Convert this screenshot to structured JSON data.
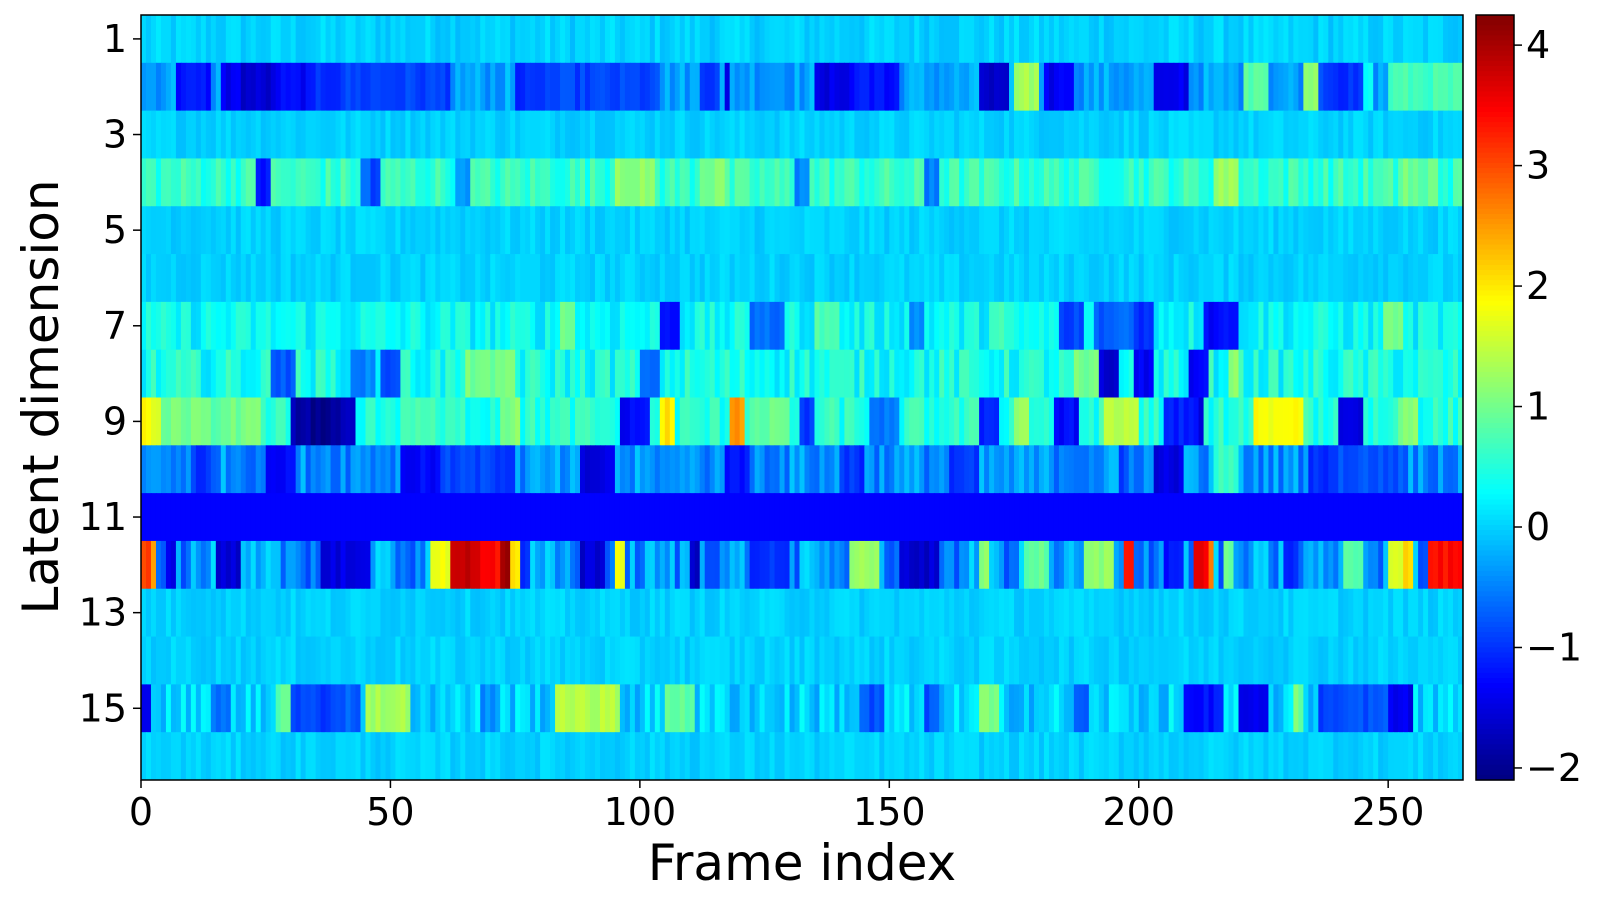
{
  "chart_data": {
    "type": "heatmap",
    "xlabel": "Frame index",
    "ylabel": "Latent dimension",
    "x_ticks": [
      0,
      50,
      100,
      150,
      200,
      250
    ],
    "y_ticks": [
      1,
      3,
      5,
      7,
      9,
      11,
      13,
      15
    ],
    "n_frames": 265,
    "n_dims": 16,
    "xlim": [
      0,
      265
    ],
    "ylim": [
      0.5,
      16.5
    ],
    "colormap": "jet",
    "color_range": [
      -2.1,
      4.25
    ],
    "colorbar_ticks": [
      4,
      3,
      2,
      1,
      0,
      -1,
      -2
    ],
    "colorbar_tick_labels": [
      "4",
      "3",
      "2",
      "1",
      "0",
      "−1",
      "−2"
    ],
    "rows": [
      {
        "dim": 1,
        "base": 0.0,
        "noise": 0.15,
        "segments": []
      },
      {
        "dim": 2,
        "base": -0.3,
        "noise": 0.25,
        "segments": [
          [
            7,
            14,
            -1.2
          ],
          [
            16,
            20,
            -1.4
          ],
          [
            20,
            27,
            -1.6
          ],
          [
            27,
            35,
            -1.3
          ],
          [
            35,
            40,
            -1.0
          ],
          [
            40,
            62,
            -0.9
          ],
          [
            75,
            80,
            -1.1
          ],
          [
            80,
            104,
            -0.9
          ],
          [
            112,
            116,
            -1.0
          ],
          [
            117,
            118,
            -1.6
          ],
          [
            135,
            142,
            -1.5
          ],
          [
            142,
            152,
            -1.2
          ],
          [
            168,
            174,
            -1.6
          ],
          [
            175,
            180,
            1.3
          ],
          [
            181,
            187,
            -1.4
          ],
          [
            203,
            210,
            -1.4
          ],
          [
            221,
            226,
            0.8
          ],
          [
            233,
            236,
            1.1
          ],
          [
            236,
            240,
            -0.9
          ],
          [
            240,
            245,
            -1.0
          ],
          [
            245,
            247,
            0.3
          ],
          [
            250,
            265,
            0.7
          ]
        ]
      },
      {
        "dim": 3,
        "base": 0.0,
        "noise": 0.12,
        "segments": []
      },
      {
        "dim": 4,
        "base": 0.6,
        "noise": 0.3,
        "segments": [
          [
            23,
            26,
            -1.2
          ],
          [
            44,
            46,
            -0.5
          ],
          [
            46,
            48,
            -1.0
          ],
          [
            63,
            66,
            -0.4
          ],
          [
            95,
            103,
            1.2
          ],
          [
            112,
            117,
            1.1
          ],
          [
            131,
            134,
            -0.5
          ],
          [
            157,
            160,
            -0.5
          ],
          [
            215,
            220,
            1.3
          ],
          [
            252,
            256,
            1.0
          ],
          [
            256,
            260,
            0.9
          ]
        ]
      },
      {
        "dim": 5,
        "base": 0.0,
        "noise": 0.12,
        "segments": []
      },
      {
        "dim": 6,
        "base": 0.0,
        "noise": 0.12,
        "segments": []
      },
      {
        "dim": 7,
        "base": 0.3,
        "noise": 0.3,
        "segments": [
          [
            84,
            87,
            0.9
          ],
          [
            104,
            108,
            -1.2
          ],
          [
            122,
            129,
            -0.6
          ],
          [
            135,
            140,
            0.8
          ],
          [
            154,
            157,
            -0.5
          ],
          [
            170,
            173,
            0.8
          ],
          [
            184,
            189,
            -0.9
          ],
          [
            191,
            199,
            -0.7
          ],
          [
            199,
            203,
            -1.0
          ],
          [
            213,
            220,
            -1.3
          ],
          [
            249,
            253,
            1.0
          ]
        ]
      },
      {
        "dim": 8,
        "base": 0.4,
        "noise": 0.35,
        "segments": [
          [
            26,
            31,
            -0.8
          ],
          [
            42,
            47,
            -0.5
          ],
          [
            48,
            52,
            -0.8
          ],
          [
            65,
            75,
            1.0
          ],
          [
            100,
            104,
            -0.6
          ],
          [
            187,
            192,
            1.0
          ],
          [
            192,
            196,
            -1.6
          ],
          [
            199,
            203,
            -1.4
          ],
          [
            210,
            214,
            -1.3
          ],
          [
            218,
            220,
            1.1
          ]
        ]
      },
      {
        "dim": 9,
        "base": 0.5,
        "noise": 0.3,
        "segments": [
          [
            0,
            2,
            2.0
          ],
          [
            2,
            4,
            1.6
          ],
          [
            4,
            12,
            1.0
          ],
          [
            12,
            18,
            0.9
          ],
          [
            18,
            24,
            1.0
          ],
          [
            30,
            34,
            -1.8
          ],
          [
            34,
            40,
            -2.0
          ],
          [
            40,
            43,
            -1.8
          ],
          [
            53,
            58,
            0.7
          ],
          [
            72,
            76,
            1.1
          ],
          [
            96,
            102,
            -1.3
          ],
          [
            104,
            107,
            2.0
          ],
          [
            118,
            121,
            2.5
          ],
          [
            122,
            130,
            0.9
          ],
          [
            132,
            135,
            -1.0
          ],
          [
            146,
            152,
            -0.6
          ],
          [
            168,
            172,
            -1.1
          ],
          [
            175,
            178,
            1.3
          ],
          [
            183,
            188,
            -1.3
          ],
          [
            193,
            200,
            1.4
          ],
          [
            205,
            212,
            -1.1
          ],
          [
            212,
            213,
            -1.6
          ],
          [
            223,
            233,
            1.8
          ],
          [
            240,
            245,
            -1.5
          ],
          [
            252,
            256,
            1.1
          ]
        ]
      },
      {
        "dim": 10,
        "base": -0.4,
        "noise": 0.35,
        "segments": [
          [
            10,
            14,
            -1.0
          ],
          [
            25,
            31,
            -1.3
          ],
          [
            52,
            60,
            -1.3
          ],
          [
            60,
            75,
            -0.9
          ],
          [
            88,
            95,
            -1.5
          ],
          [
            103,
            108,
            -0.5
          ],
          [
            117,
            122,
            -1.2
          ],
          [
            140,
            145,
            -1.0
          ],
          [
            162,
            168,
            -1.0
          ],
          [
            196,
            198,
            -0.9
          ],
          [
            203,
            209,
            -1.5
          ],
          [
            215,
            220,
            0.6
          ],
          [
            234,
            240,
            -1.0
          ],
          [
            240,
            254,
            -0.8
          ]
        ]
      },
      {
        "dim": 11,
        "base": -1.3,
        "noise": 0.0,
        "segments": []
      },
      {
        "dim": 12,
        "base": -0.4,
        "noise": 0.5,
        "segments": [
          [
            0,
            2,
            3.0
          ],
          [
            2,
            3,
            2.6
          ],
          [
            5,
            7,
            -1.4
          ],
          [
            15,
            20,
            -1.6
          ],
          [
            36,
            46,
            -1.5
          ],
          [
            58,
            62,
            1.8
          ],
          [
            62,
            66,
            3.8
          ],
          [
            66,
            70,
            3.6
          ],
          [
            70,
            72,
            3.4
          ],
          [
            72,
            74,
            4.0
          ],
          [
            74,
            76,
            2.0
          ],
          [
            76,
            78,
            -1.0
          ],
          [
            88,
            93,
            -1.6
          ],
          [
            95,
            97,
            1.8
          ],
          [
            110,
            112,
            -1.6
          ],
          [
            122,
            130,
            -1.0
          ],
          [
            142,
            148,
            1.2
          ],
          [
            152,
            160,
            -1.6
          ],
          [
            168,
            170,
            1.2
          ],
          [
            177,
            182,
            0.9
          ],
          [
            189,
            195,
            1.2
          ],
          [
            197,
            199,
            3.3
          ],
          [
            205,
            209,
            -1.2
          ],
          [
            211,
            214,
            3.6
          ],
          [
            214,
            215,
            2.6
          ],
          [
            217,
            219,
            1.0
          ],
          [
            229,
            232,
            -1.1
          ],
          [
            241,
            245,
            0.8
          ],
          [
            250,
            253,
            1.7
          ],
          [
            253,
            255,
            2.2
          ],
          [
            258,
            265,
            3.4
          ]
        ]
      },
      {
        "dim": 13,
        "base": 0.0,
        "noise": 0.12,
        "segments": []
      },
      {
        "dim": 14,
        "base": 0.0,
        "noise": 0.12,
        "segments": []
      },
      {
        "dim": 15,
        "base": 0.0,
        "noise": 0.35,
        "segments": [
          [
            0,
            2,
            -1.4
          ],
          [
            14,
            18,
            -0.6
          ],
          [
            27,
            30,
            0.9
          ],
          [
            30,
            39,
            -0.9
          ],
          [
            39,
            44,
            -0.7
          ],
          [
            45,
            54,
            1.3
          ],
          [
            68,
            72,
            -0.4
          ],
          [
            83,
            96,
            1.4
          ],
          [
            105,
            111,
            0.9
          ],
          [
            144,
            149,
            -0.8
          ],
          [
            157,
            160,
            -0.8
          ],
          [
            168,
            172,
            1.1
          ],
          [
            187,
            190,
            -0.7
          ],
          [
            209,
            217,
            -1.2
          ],
          [
            220,
            226,
            -1.4
          ],
          [
            231,
            233,
            1.0
          ],
          [
            236,
            241,
            -0.9
          ],
          [
            241,
            250,
            -0.8
          ],
          [
            250,
            255,
            -1.4
          ]
        ]
      },
      {
        "dim": 16,
        "base": 0.0,
        "noise": 0.12,
        "segments": []
      }
    ]
  }
}
